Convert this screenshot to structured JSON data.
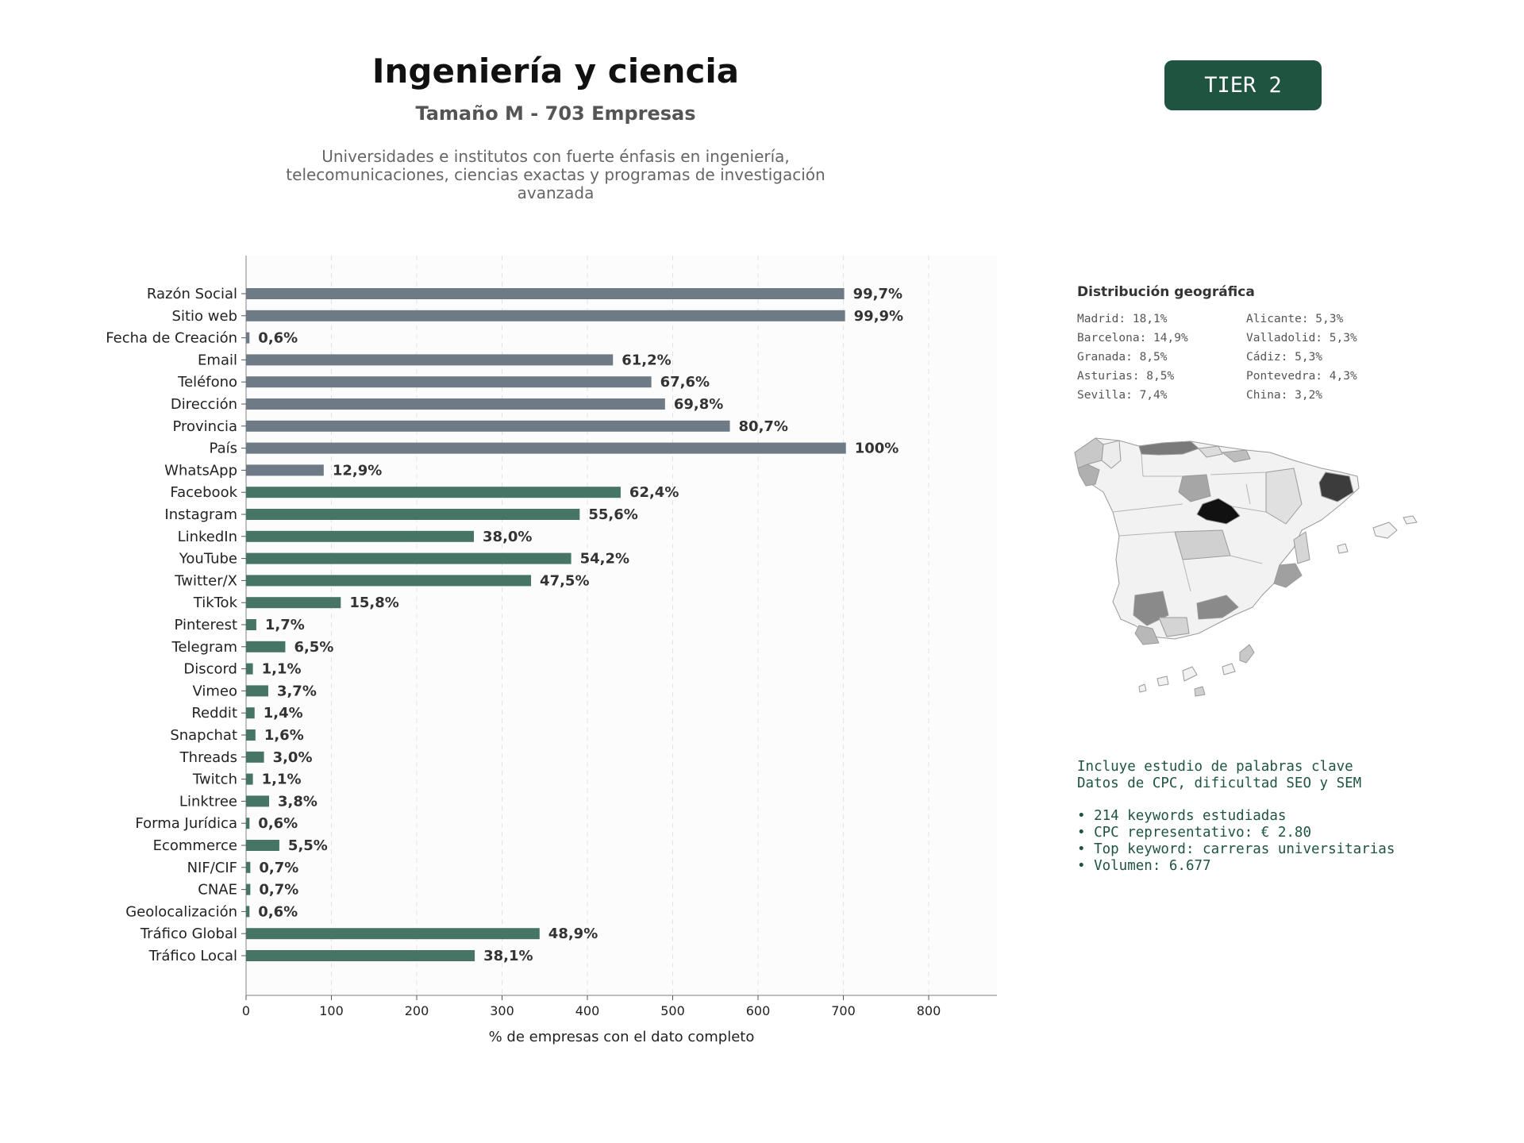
{
  "header": {
    "title": "Ingeniería y ciencia",
    "subtitle": "Tamaño M - 703 Empresas",
    "description": "Universidades e institutos con fuerte énfasis en ingeniería, telecomunicaciones, ciencias exactas y programas de investigación avanzada"
  },
  "tier_badge": "TIER 2",
  "colors": {
    "basic_bar": "#6e7a86",
    "digital_bar": "#467565",
    "accent": "#1e5440"
  },
  "chart_data": {
    "type": "bar",
    "orientation": "horizontal",
    "xlabel": "% de empresas con el dato completo",
    "xlim": [
      0,
      880
    ],
    "xticks": [
      0,
      100,
      200,
      300,
      400,
      500,
      600,
      700,
      800
    ],
    "grid": "vertical dashed",
    "categories": [
      "Razón Social",
      "Sitio web",
      "Fecha de Creación",
      "Email",
      "Teléfono",
      "Dirección",
      "Provincia",
      "País",
      "WhatsApp",
      "Facebook",
      "Instagram",
      "LinkedIn",
      "YouTube",
      "Twitter/X",
      "TikTok",
      "Pinterest",
      "Telegram",
      "Discord",
      "Vimeo",
      "Reddit",
      "Snapchat",
      "Threads",
      "Twitch",
      "Linktree",
      "Forma Jurídica",
      "Ecommerce",
      "NIF/CIF",
      "CNAE",
      "Geolocalización",
      "Tráfico Global",
      "Tráfico Local"
    ],
    "values": [
      701,
      702,
      4,
      430,
      475,
      491,
      567,
      703,
      91,
      439,
      391,
      267,
      381,
      334,
      111,
      12,
      46,
      8,
      26,
      10,
      11,
      21,
      8,
      27,
      4,
      39,
      5,
      5,
      4,
      344,
      268
    ],
    "labels": [
      "99,7%",
      "99,9%",
      "0,6%",
      "61,2%",
      "67,6%",
      "69,8%",
      "80,7%",
      "100%",
      "12,9%",
      "62,4%",
      "55,6%",
      "38,0%",
      "54,2%",
      "47,5%",
      "15,8%",
      "1,7%",
      "6,5%",
      "1,1%",
      "3,7%",
      "1,4%",
      "1,6%",
      "3,0%",
      "1,1%",
      "3,8%",
      "0,6%",
      "5,5%",
      "0,7%",
      "0,7%",
      "0,6%",
      "48,9%",
      "38,1%"
    ],
    "groups": [
      "basic",
      "basic",
      "basic",
      "basic",
      "basic",
      "basic",
      "basic",
      "basic",
      "basic",
      "digital",
      "digital",
      "digital",
      "digital",
      "digital",
      "digital",
      "digital",
      "digital",
      "digital",
      "digital",
      "digital",
      "digital",
      "digital",
      "digital",
      "digital",
      "digital",
      "digital",
      "digital",
      "digital",
      "digital",
      "digital",
      "digital"
    ]
  },
  "geo": {
    "title": "Distribución geográfica",
    "items": [
      "Madrid: 18,1%",
      "Alicante: 5,3%",
      "Barcelona: 14,9%",
      "Valladolid: 5,3%",
      "Granada: 8,5%",
      "Cádiz: 5,3%",
      "Asturias: 8,5%",
      "Pontevedra: 4,3%",
      "Sevilla: 7,4%",
      "China: 3,2%"
    ]
  },
  "keywords": {
    "line1": "Incluye estudio de palabras clave",
    "line2": "Datos de CPC, dificultad SEO y SEM",
    "bullets": [
      "• 214 keywords estudiadas",
      "• CPC representativo: € 2.80",
      "• Top keyword: carreras universitarias",
      "• Volumen: 6.677"
    ]
  }
}
